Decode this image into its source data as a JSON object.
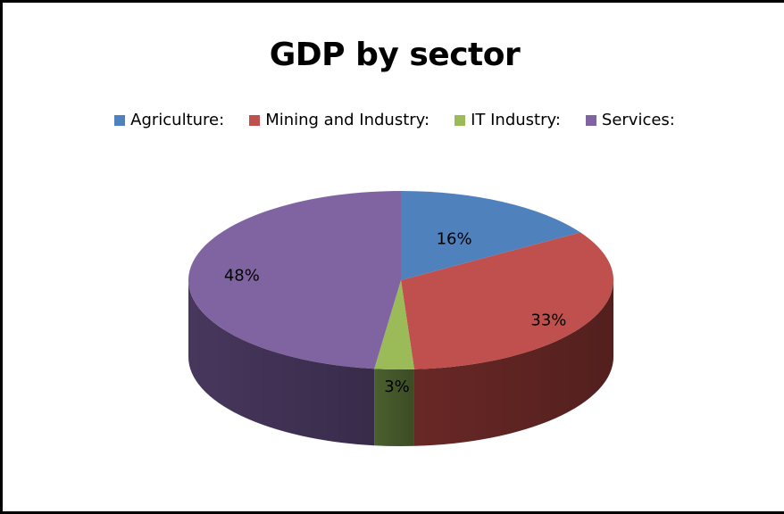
{
  "chart_data": {
    "type": "pie",
    "title": "GDP by sector",
    "legend_position": "top",
    "categories": [
      "Agriculture:",
      "Mining and Industry:",
      "IT Industry:",
      "Services:"
    ],
    "values": [
      16,
      33,
      3,
      48
    ],
    "labels": [
      "16%",
      "33%",
      "3%",
      "48%"
    ],
    "colors": [
      "#4F81BD",
      "#C0504D",
      "#9BBB59",
      "#8064A2"
    ],
    "side_colors": [
      "#2E4D73",
      "#6E2A28",
      "#4F6530",
      "#4B3A62"
    ]
  }
}
